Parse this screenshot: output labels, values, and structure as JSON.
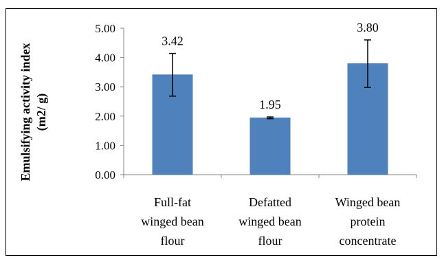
{
  "chart_data": {
    "type": "bar",
    "title": "",
    "xlabel": "",
    "ylabel": [
      "Emulsifying activity index",
      "(m2/ g)"
    ],
    "ylim": [
      0,
      5
    ],
    "yticks": [
      "0.00",
      "1.00",
      "2.00",
      "3.00",
      "4.00",
      "5.00"
    ],
    "ytick_values": [
      0,
      1,
      2,
      3,
      4,
      5
    ],
    "grid": false,
    "legend": "none",
    "categories": [
      [
        "Full-fat",
        "winged bean",
        "flour"
      ],
      [
        "Defatted",
        "winged bean",
        "flour"
      ],
      [
        "Winged bean",
        "protein",
        "concentrate"
      ]
    ],
    "values": [
      3.42,
      1.95,
      3.8
    ],
    "data_labels": [
      "3.42",
      "1.95",
      "3.80"
    ],
    "error_bars": [
      {
        "low": 2.68,
        "high": 4.14
      },
      {
        "low": 1.91,
        "high": 1.97
      },
      {
        "low": 2.98,
        "high": 4.6
      }
    ],
    "bar_color": "#4F81BD"
  }
}
